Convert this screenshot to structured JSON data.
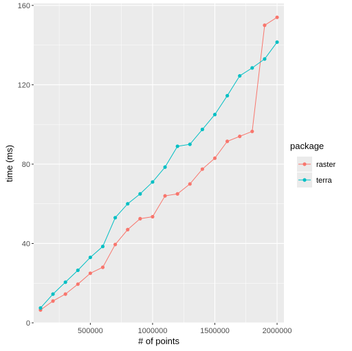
{
  "chart_data": {
    "type": "line",
    "title": "",
    "xlabel": "# of points",
    "ylabel": "time (ms)",
    "xlim": [
      45000,
      2055000
    ],
    "ylim": [
      0,
      161
    ],
    "x_ticks": [
      500000,
      1000000,
      1500000,
      2000000
    ],
    "x_tick_labels": [
      "500000",
      "1000000",
      "1500000",
      "2000000"
    ],
    "y_ticks": [
      0,
      40,
      80,
      120,
      160
    ],
    "y_tick_labels": [
      "0",
      "40",
      "80",
      "120",
      "160"
    ],
    "grid": true,
    "legend": {
      "title": "package",
      "position": "right"
    },
    "x": [
      100000,
      200000,
      300000,
      400000,
      500000,
      600000,
      700000,
      800000,
      900000,
      1000000,
      1100000,
      1200000,
      1300000,
      1400000,
      1500000,
      1600000,
      1700000,
      1800000,
      1900000,
      2000000
    ],
    "series": [
      {
        "name": "raster",
        "color": "#F8766D",
        "values": [
          6.5,
          11,
          14.5,
          19.5,
          25,
          28,
          39.5,
          47,
          52.5,
          53.5,
          64,
          65,
          70,
          77.5,
          83,
          91.5,
          94,
          96.5,
          150,
          154
        ]
      },
      {
        "name": "terra",
        "color": "#00BFC4",
        "values": [
          7.5,
          14.5,
          20.5,
          26.5,
          33,
          38.5,
          53,
          60,
          65,
          71,
          78.5,
          89,
          90,
          97.5,
          105,
          114.5,
          124.5,
          128.5,
          133,
          141.5
        ]
      }
    ]
  },
  "colors": {
    "panel_background": "#EBEBEB",
    "grid_major": "#FFFFFF"
  }
}
